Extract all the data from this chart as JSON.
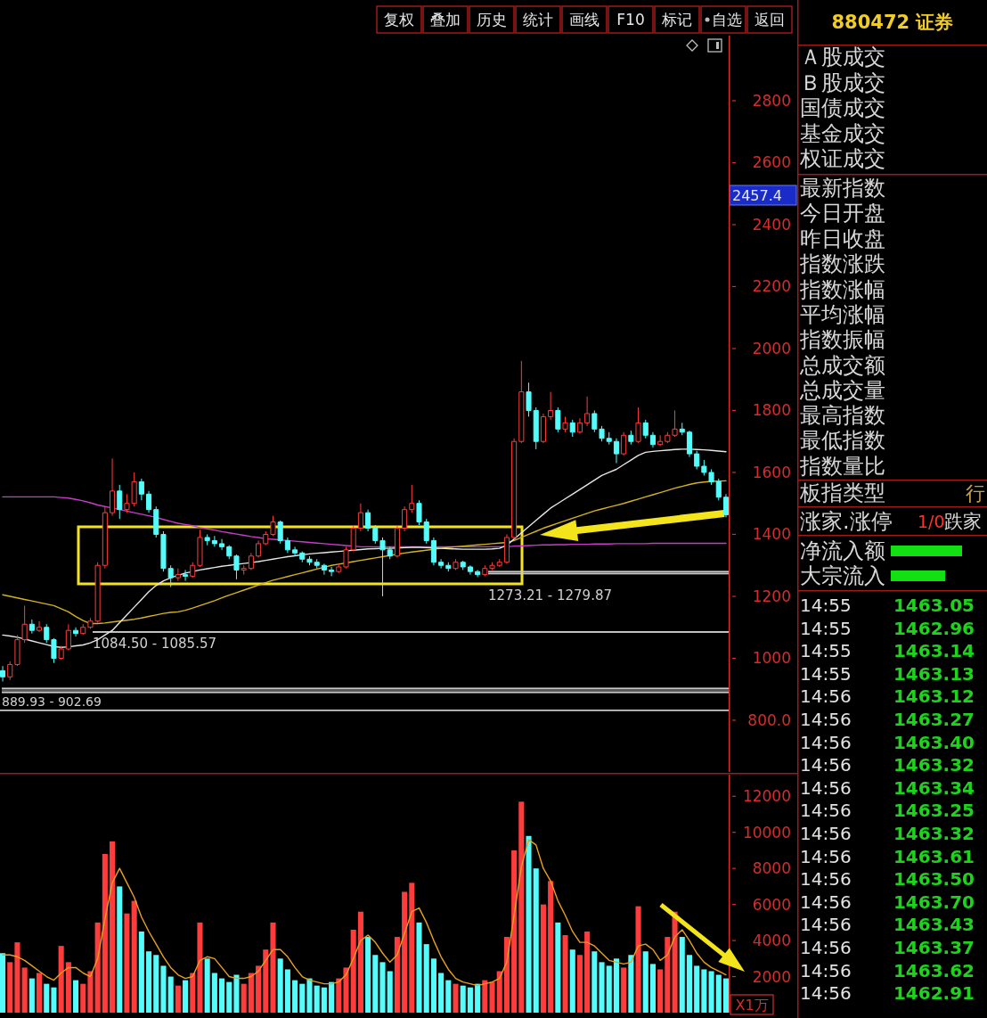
{
  "chart_data": [
    {
      "type": "candlestick",
      "categories": [
        null,
        null,
        null,
        null,
        null,
        null,
        null,
        null,
        null,
        null,
        null,
        null,
        null,
        null,
        null,
        null,
        null,
        null,
        null,
        null,
        null,
        null,
        null,
        null,
        null,
        null,
        null,
        null,
        null,
        null,
        null,
        null,
        null,
        null,
        null,
        null,
        null,
        null,
        null,
        null,
        null,
        null,
        null,
        null,
        null,
        null,
        null,
        null,
        null,
        null,
        null,
        null,
        null,
        null,
        null,
        null,
        null,
        null,
        null,
        null,
        null,
        null,
        null,
        null,
        null,
        null,
        null,
        null,
        null,
        null,
        null,
        null,
        null,
        null,
        null,
        null,
        null,
        null,
        null,
        null,
        null,
        null,
        null,
        null,
        null,
        null,
        null,
        null,
        null,
        null,
        null,
        null,
        null,
        null,
        null,
        null,
        null,
        null,
        null,
        null
      ],
      "ohlc": [
        [
          960,
          975,
          925,
          940
        ],
        [
          940,
          990,
          930,
          980
        ],
        [
          980,
          1075,
          975,
          1060
        ],
        [
          1060,
          1170,
          1050,
          1110
        ],
        [
          1110,
          1125,
          1080,
          1090
        ],
        [
          1090,
          1120,
          1085,
          1100
        ],
        [
          1100,
          1110,
          1050,
          1060
        ],
        [
          1060,
          1065,
          985,
          1000
        ],
        [
          1000,
          1040,
          995,
          1030
        ],
        [
          1030,
          1110,
          1025,
          1090
        ],
        [
          1090,
          1100,
          1070,
          1080
        ],
        [
          1080,
          1110,
          1075,
          1100
        ],
        [
          1100,
          1130,
          1095,
          1120
        ],
        [
          1120,
          1310,
          1115,
          1300
        ],
        [
          1300,
          1490,
          1290,
          1470
        ],
        [
          1470,
          1645,
          1460,
          1540
        ],
        [
          1540,
          1560,
          1450,
          1480
        ],
        [
          1480,
          1530,
          1470,
          1500
        ],
        [
          1500,
          1600,
          1490,
          1570
        ],
        [
          1570,
          1580,
          1510,
          1530
        ],
        [
          1530,
          1540,
          1470,
          1480
        ],
        [
          1480,
          1490,
          1390,
          1400
        ],
        [
          1400,
          1410,
          1280,
          1290
        ],
        [
          1290,
          1300,
          1230,
          1260
        ],
        [
          1260,
          1290,
          1250,
          1270
        ],
        [
          1270,
          1285,
          1250,
          1265
        ],
        [
          1265,
          1310,
          1260,
          1300
        ],
        [
          1300,
          1415,
          1295,
          1390
        ],
        [
          1390,
          1400,
          1365,
          1380
        ],
        [
          1380,
          1395,
          1360,
          1370
        ],
        [
          1370,
          1385,
          1350,
          1360
        ],
        [
          1360,
          1365,
          1320,
          1330
        ],
        [
          1330,
          1335,
          1255,
          1285
        ],
        [
          1285,
          1300,
          1270,
          1290
        ],
        [
          1290,
          1340,
          1285,
          1330
        ],
        [
          1330,
          1380,
          1325,
          1370
        ],
        [
          1370,
          1410,
          1365,
          1400
        ],
        [
          1400,
          1460,
          1395,
          1440
        ],
        [
          1440,
          1445,
          1370,
          1380
        ],
        [
          1380,
          1390,
          1340,
          1350
        ],
        [
          1350,
          1360,
          1330,
          1340
        ],
        [
          1340,
          1345,
          1310,
          1320
        ],
        [
          1320,
          1330,
          1300,
          1310
        ],
        [
          1310,
          1320,
          1290,
          1300
        ],
        [
          1300,
          1305,
          1270,
          1285
        ],
        [
          1285,
          1295,
          1265,
          1280
        ],
        [
          1280,
          1305,
          1275,
          1295
        ],
        [
          1295,
          1360,
          1290,
          1350
        ],
        [
          1350,
          1430,
          1345,
          1420
        ],
        [
          1420,
          1500,
          1410,
          1470
        ],
        [
          1470,
          1480,
          1410,
          1420
        ],
        [
          1420,
          1430,
          1370,
          1380
        ],
        [
          1380,
          1390,
          1200,
          1350
        ],
        [
          1350,
          1360,
          1320,
          1330
        ],
        [
          1330,
          1430,
          1325,
          1420
        ],
        [
          1420,
          1490,
          1410,
          1480
        ],
        [
          1480,
          1560,
          1470,
          1500
        ],
        [
          1500,
          1510,
          1430,
          1440
        ],
        [
          1440,
          1450,
          1370,
          1380
        ],
        [
          1380,
          1390,
          1300,
          1310
        ],
        [
          1310,
          1320,
          1290,
          1300
        ],
        [
          1300,
          1310,
          1280,
          1290
        ],
        [
          1290,
          1320,
          1285,
          1310
        ],
        [
          1310,
          1315,
          1285,
          1295
        ],
        [
          1295,
          1300,
          1270,
          1280
        ],
        [
          1280,
          1285,
          1262,
          1270
        ],
        [
          1270,
          1300,
          1265,
          1290
        ],
        [
          1290,
          1310,
          1285,
          1300
        ],
        [
          1300,
          1320,
          1295,
          1310
        ],
        [
          1310,
          1400,
          1305,
          1390
        ],
        [
          1390,
          1710,
          1385,
          1700
        ],
        [
          1700,
          1960,
          1695,
          1860
        ],
        [
          1860,
          1890,
          1780,
          1800
        ],
        [
          1800,
          1810,
          1675,
          1700
        ],
        [
          1700,
          1790,
          1695,
          1780
        ],
        [
          1780,
          1860,
          1770,
          1800
        ],
        [
          1800,
          1810,
          1730,
          1740
        ],
        [
          1740,
          1780,
          1730,
          1760
        ],
        [
          1760,
          1770,
          1715,
          1730
        ],
        [
          1730,
          1775,
          1725,
          1760
        ],
        [
          1760,
          1845,
          1750,
          1790
        ],
        [
          1790,
          1800,
          1730,
          1740
        ],
        [
          1740,
          1750,
          1700,
          1710
        ],
        [
          1710,
          1730,
          1690,
          1700
        ],
        [
          1700,
          1710,
          1630,
          1660
        ],
        [
          1660,
          1730,
          1655,
          1720
        ],
        [
          1720,
          1735,
          1690,
          1700
        ],
        [
          1700,
          1810,
          1695,
          1760
        ],
        [
          1760,
          1770,
          1710,
          1720
        ],
        [
          1720,
          1730,
          1680,
          1690
        ],
        [
          1690,
          1720,
          1685,
          1700
        ],
        [
          1700,
          1730,
          1695,
          1720
        ],
        [
          1720,
          1800,
          1715,
          1740
        ],
        [
          1740,
          1760,
          1720,
          1730
        ],
        [
          1730,
          1735,
          1650,
          1660
        ],
        [
          1660,
          1670,
          1610,
          1620
        ],
        [
          1620,
          1640,
          1590,
          1600
        ],
        [
          1600,
          1610,
          1560,
          1570
        ],
        [
          1570,
          1580,
          1510,
          1520
        ],
        [
          1520,
          1530,
          1455,
          1463
        ]
      ],
      "colors": [
        "#54fcfc",
        "#ff3c3c",
        "#ff3c3c",
        "#ff3c3c",
        "#54fcfc",
        "#ff3c3c",
        "#54fcfc",
        "#54fcfc",
        "#ff3c3c",
        "#ff3c3c",
        "#54fcfc",
        "#ff3c3c",
        "#ff3c3c",
        "#ff3c3c",
        "#ff3c3c",
        "#ff3c3c",
        "#54fcfc",
        "#ff3c3c",
        "#ff3c3c",
        "#54fcfc",
        "#54fcfc",
        "#54fcfc",
        "#54fcfc",
        "#54fcfc",
        "#ff3c3c",
        "#54fcfc",
        "#ff3c3c",
        "#ff3c3c",
        "#54fcfc",
        "#54fcfc",
        "#54fcfc",
        "#54fcfc",
        "#54fcfc",
        "#ff3c3c",
        "#ff3c3c",
        "#ff3c3c",
        "#ff3c3c",
        "#ff3c3c",
        "#54fcfc",
        "#54fcfc",
        "#54fcfc",
        "#54fcfc",
        "#54fcfc",
        "#54fcfc",
        "#54fcfc",
        "#54fcfc",
        "#ff3c3c",
        "#ff3c3c",
        "#ff3c3c",
        "#ff3c3c",
        "#54fcfc",
        "#54fcfc",
        "#54fcfc",
        "#54fcfc",
        "#ff3c3c",
        "#ff3c3c",
        "#ff3c3c",
        "#54fcfc",
        "#54fcfc",
        "#54fcfc",
        "#54fcfc",
        "#54fcfc",
        "#ff3c3c",
        "#54fcfc",
        "#54fcfc",
        "#54fcfc",
        "#ff3c3c",
        "#ff3c3c",
        "#ff3c3c",
        "#ff3c3c",
        "#ff3c3c",
        "#ff3c3c",
        "#54fcfc",
        "#54fcfc",
        "#ff3c3c",
        "#ff3c3c",
        "#54fcfc",
        "#ff3c3c",
        "#54fcfc",
        "#ff3c3c",
        "#ff3c3c",
        "#54fcfc",
        "#54fcfc",
        "#54fcfc",
        "#54fcfc",
        "#ff3c3c",
        "#54fcfc",
        "#ff3c3c",
        "#54fcfc",
        "#54fcfc",
        "#ff3c3c",
        "#ff3c3c",
        "#ff3c3c",
        "#54fcfc",
        "#54fcfc",
        "#54fcfc",
        "#54fcfc",
        "#54fcfc",
        "#54fcfc",
        "#54fcfc"
      ],
      "series": [
        {
          "type": "line",
          "color": "#c83cc8",
          "values": [
            1521,
            1521,
            1521,
            1521,
            1521,
            1521,
            1521,
            1521,
            1519,
            1517,
            1513,
            1508,
            1502,
            1495,
            1490,
            1485,
            1480,
            1475,
            1470,
            1465,
            1460,
            1455,
            1448,
            1442,
            1436,
            1432,
            1428,
            1422,
            1418,
            1414,
            1409,
            1405,
            1401,
            1397,
            1393,
            1390,
            1386,
            1384,
            1382,
            1380,
            1378,
            1376,
            1374,
            1372,
            1370,
            1368,
            1366,
            1364,
            1362,
            1360,
            1360,
            1360,
            1360,
            1360,
            1360,
            1360,
            1360,
            1360,
            1360,
            1360,
            1360,
            1360,
            1360,
            1360,
            1360,
            1360,
            1360,
            1360,
            1360,
            1360,
            1362,
            1363,
            1364,
            1365,
            1366,
            1366,
            1367,
            1367,
            1368,
            1368,
            1368,
            1369,
            1369,
            1369,
            1370,
            1370,
            1370,
            1370,
            1370,
            1371,
            1371,
            1371,
            1371,
            1371,
            1371,
            1371,
            1371,
            1371,
            1371,
            1371
          ]
        },
        {
          "type": "line",
          "color": "#d4b21c",
          "values": [
            1205,
            1200,
            1195,
            1190,
            1185,
            1180,
            1175,
            1170,
            1160,
            1150,
            1135,
            1122,
            1112,
            1112,
            1114,
            1117,
            1120,
            1123,
            1126,
            1130,
            1135,
            1140,
            1145,
            1148,
            1150,
            1155,
            1162,
            1170,
            1178,
            1186,
            1195,
            1204,
            1212,
            1220,
            1228,
            1236,
            1244,
            1252,
            1258,
            1264,
            1270,
            1276,
            1282,
            1288,
            1294,
            1300,
            1304,
            1308,
            1312,
            1316,
            1320,
            1324,
            1328,
            1332,
            1336,
            1340,
            1343,
            1346,
            1349,
            1352,
            1355,
            1358,
            1360,
            1362,
            1364,
            1366,
            1368,
            1370,
            1372,
            1374,
            1380,
            1390,
            1400,
            1410,
            1420,
            1428,
            1436,
            1444,
            1452,
            1460,
            1468,
            1476,
            1482,
            1488,
            1494,
            1500,
            1507,
            1514,
            1521,
            1528,
            1535,
            1542,
            1549,
            1555,
            1561,
            1566,
            1569,
            1571,
            1572,
            1573
          ]
        },
        {
          "type": "line",
          "color": "#e6e6e6",
          "values": [
            1075,
            1072,
            1068,
            1062,
            1056,
            1050,
            1044,
            1038,
            1035,
            1037,
            1040,
            1043,
            1050,
            1060,
            1075,
            1090,
            1115,
            1140,
            1165,
            1190,
            1215,
            1235,
            1250,
            1260,
            1268,
            1275,
            1280,
            1285,
            1289,
            1293,
            1297,
            1300,
            1303,
            1306,
            1309,
            1312,
            1316,
            1320,
            1324,
            1328,
            1331,
            1334,
            1337,
            1339,
            1341,
            1343,
            1345,
            1347,
            1349,
            1351,
            1353,
            1354,
            1355,
            1355,
            1356,
            1357,
            1358,
            1358,
            1357,
            1356,
            1355,
            1354,
            1353,
            1352,
            1352,
            1352,
            1352,
            1353,
            1355,
            1365,
            1385,
            1405,
            1425,
            1445,
            1465,
            1485,
            1500,
            1515,
            1530,
            1545,
            1560,
            1575,
            1590,
            1600,
            1610,
            1625,
            1640,
            1655,
            1665,
            1668,
            1670,
            1672,
            1674,
            1675,
            1675,
            1674,
            1673,
            1671,
            1669,
            1667
          ]
        }
      ],
      "ylim": [
        633,
        3010
      ],
      "yticks": [
        {
          "value": 800,
          "label": "800.0"
        },
        1000,
        1200,
        1400,
        1600,
        1800,
        2000,
        2200,
        2400,
        2600,
        2800
      ],
      "bands": [
        {
          "axis": "y",
          "from": 1273.21,
          "to": 1279.87,
          "label": "1273.21 - 1279.87",
          "color": "#c8c8c8"
        },
        {
          "axis": "y",
          "from": 1084.5,
          "to": 1085.57,
          "label": "1084.50 - 1085.57",
          "color": "#c8c8c8"
        },
        {
          "axis": "y",
          "from": 889.93,
          "to": 902.69,
          "label": "889.93 - 902.69",
          "color": "#c8c8c8"
        }
      ],
      "ref_lines": [
        {
          "axis": "y",
          "value": 832,
          "color": "#c8c8c8"
        }
      ],
      "annotations": [
        "复权",
        "叠加",
        "历史",
        "统计",
        "画线",
        "F10",
        "标记",
        "自选",
        "返回",
        "2457.4"
      ]
    },
    {
      "type": "bar",
      "categories": [
        null,
        null,
        null,
        null,
        null,
        null,
        null,
        null,
        null,
        null,
        null,
        null,
        null,
        null,
        null,
        null,
        null,
        null,
        null,
        null,
        null,
        null,
        null,
        null,
        null,
        null,
        null,
        null,
        null,
        null,
        null,
        null,
        null,
        null,
        null,
        null,
        null,
        null,
        null,
        null,
        null,
        null,
        null,
        null,
        null,
        null,
        null,
        null,
        null,
        null,
        null,
        null,
        null,
        null,
        null,
        null,
        null,
        null,
        null,
        null,
        null,
        null,
        null,
        null,
        null,
        null,
        null,
        null,
        null,
        null,
        null,
        null,
        null,
        null,
        null,
        null,
        null,
        null,
        null,
        null,
        null,
        null,
        null,
        null,
        null,
        null,
        null,
        null,
        null,
        null,
        null,
        null,
        null,
        null,
        null,
        null,
        null,
        null,
        null,
        null
      ],
      "series": [
        {
          "type": "bar",
          "values": [
            3300,
            2800,
            3900,
            2500,
            1900,
            2200,
            1600,
            1400,
            3700,
            2800,
            1800,
            1600,
            2300,
            5000,
            8800,
            9500,
            7000,
            5500,
            6200,
            4500,
            3400,
            3200,
            2600,
            2000,
            1500,
            1800,
            2200,
            5000,
            3000,
            2200,
            1900,
            1700,
            2100,
            1600,
            2200,
            2600,
            3500,
            5000,
            3000,
            2400,
            1800,
            1600,
            1900,
            1500,
            1400,
            1700,
            1900,
            2500,
            4600,
            5600,
            4200,
            3200,
            2800,
            2300,
            4200,
            6700,
            7200,
            5000,
            3800,
            3000,
            2200,
            1800,
            1600,
            1500,
            1400,
            1600,
            1800,
            1700,
            2300,
            4200,
            9000,
            11700,
            9800,
            8000,
            6000,
            7300,
            5000,
            4300,
            3500,
            3200,
            4500,
            3400,
            2800,
            2600,
            3000,
            2500,
            3200,
            5900,
            3400,
            2700,
            2400,
            4200,
            5600,
            4200,
            3200,
            2600,
            2400,
            2300,
            2100,
            1900
          ],
          "colors": [
            "#54fcfc",
            "#ff3c3c",
            "#ff3c3c",
            "#ff3c3c",
            "#54fcfc",
            "#ff3c3c",
            "#54fcfc",
            "#54fcfc",
            "#ff3c3c",
            "#ff3c3c",
            "#54fcfc",
            "#ff3c3c",
            "#ff3c3c",
            "#ff3c3c",
            "#ff3c3c",
            "#ff3c3c",
            "#54fcfc",
            "#ff3c3c",
            "#ff3c3c",
            "#54fcfc",
            "#54fcfc",
            "#54fcfc",
            "#54fcfc",
            "#54fcfc",
            "#ff3c3c",
            "#54fcfc",
            "#ff3c3c",
            "#ff3c3c",
            "#54fcfc",
            "#54fcfc",
            "#54fcfc",
            "#54fcfc",
            "#54fcfc",
            "#ff3c3c",
            "#ff3c3c",
            "#ff3c3c",
            "#ff3c3c",
            "#ff3c3c",
            "#54fcfc",
            "#54fcfc",
            "#54fcfc",
            "#54fcfc",
            "#54fcfc",
            "#54fcfc",
            "#54fcfc",
            "#54fcfc",
            "#ff3c3c",
            "#ff3c3c",
            "#ff3c3c",
            "#ff3c3c",
            "#54fcfc",
            "#54fcfc",
            "#54fcfc",
            "#54fcfc",
            "#ff3c3c",
            "#ff3c3c",
            "#ff3c3c",
            "#54fcfc",
            "#54fcfc",
            "#54fcfc",
            "#54fcfc",
            "#54fcfc",
            "#ff3c3c",
            "#54fcfc",
            "#54fcfc",
            "#54fcfc",
            "#ff3c3c",
            "#ff3c3c",
            "#ff3c3c",
            "#ff3c3c",
            "#ff3c3c",
            "#ff3c3c",
            "#54fcfc",
            "#54fcfc",
            "#ff3c3c",
            "#ff3c3c",
            "#54fcfc",
            "#ff3c3c",
            "#54fcfc",
            "#ff3c3c",
            "#ff3c3c",
            "#54fcfc",
            "#54fcfc",
            "#54fcfc",
            "#54fcfc",
            "#ff3c3c",
            "#54fcfc",
            "#ff3c3c",
            "#54fcfc",
            "#54fcfc",
            "#ff3c3c",
            "#ff3c3c",
            "#ff3c3c",
            "#54fcfc",
            "#54fcfc",
            "#54fcfc",
            "#54fcfc",
            "#54fcfc",
            "#54fcfc",
            "#54fcfc"
          ]
        },
        {
          "type": "line",
          "color": "#e8a020",
          "values": [
            3200,
            3200,
            3100,
            2900,
            2600,
            2300,
            2000,
            1800,
            2200,
            2500,
            2500,
            2200,
            2000,
            3000,
            5200,
            7200,
            8000,
            7200,
            6400,
            5300,
            4500,
            3800,
            3100,
            2500,
            2100,
            1900,
            2000,
            2900,
            3100,
            3000,
            2500,
            2000,
            1900,
            1900,
            2000,
            2300,
            2900,
            3500,
            3500,
            3100,
            2500,
            2000,
            1800,
            1700,
            1600,
            1600,
            1700,
            2100,
            3000,
            4000,
            4300,
            3900,
            3300,
            2800,
            3200,
            4400,
            5600,
            5800,
            5000,
            4000,
            3100,
            2400,
            1900,
            1700,
            1600,
            1500,
            1600,
            1700,
            1900,
            2800,
            5400,
            8100,
            9600,
            9300,
            8000,
            7300,
            6200,
            5400,
            4500,
            3900,
            3900,
            3700,
            3300,
            2900,
            2800,
            2700,
            2800,
            3700,
            3800,
            3500,
            2900,
            3200,
            4200,
            4600,
            4000,
            3300,
            2800,
            2500,
            2300,
            2100
          ]
        }
      ],
      "ylim": [
        0,
        13200
      ],
      "yticks": [
        2000,
        4000,
        6000,
        8000,
        10000,
        12000
      ],
      "ylabel": "X1万"
    },
    {
      "type": "other",
      "title": "880472 证券",
      "annotations": [
        "Ａ股成交",
        "Ｂ股成交",
        "国债成交",
        "基金成交",
        "权证成交",
        "最新指数",
        "今日开盘",
        "昨日收盘",
        "指数涨跌",
        "指数涨幅",
        "平均涨幅",
        "指数振幅",
        "总成交额",
        "总成交量",
        "最高指数",
        "最低指数",
        "指数量比",
        "板指类型",
        "行",
        "涨家.涨停",
        "1/0",
        "跌家",
        "净流入额",
        "大宗流入"
      ],
      "categories": [
        "14:55",
        "14:55",
        "14:55",
        "14:55",
        "14:56",
        "14:56",
        "14:56",
        "14:56",
        "14:56",
        "14:56",
        "14:56",
        "14:56",
        "14:56",
        "14:56",
        "14:56",
        "14:56",
        "14:56",
        "14:56"
      ],
      "values": [
        1463.05,
        1462.96,
        1463.14,
        1463.13,
        1463.12,
        1463.27,
        1463.4,
        1463.32,
        1463.34,
        1463.25,
        1463.32,
        1463.61,
        1463.5,
        1463.7,
        1463.43,
        1463.37,
        1463.62,
        1462.91
      ],
      "value_labels": [
        "1463.05",
        "1462.96",
        "1463.14",
        "1463.13",
        "1463.12",
        "1463.27",
        "1463.40",
        "1463.32",
        "1463.34",
        "1463.25",
        "1463.32",
        "1463.61",
        "1463.50",
        "1463.70",
        "1463.43",
        "1463.37",
        "1463.62",
        "1462.91"
      ],
      "color": "#1ed21e"
    }
  ]
}
